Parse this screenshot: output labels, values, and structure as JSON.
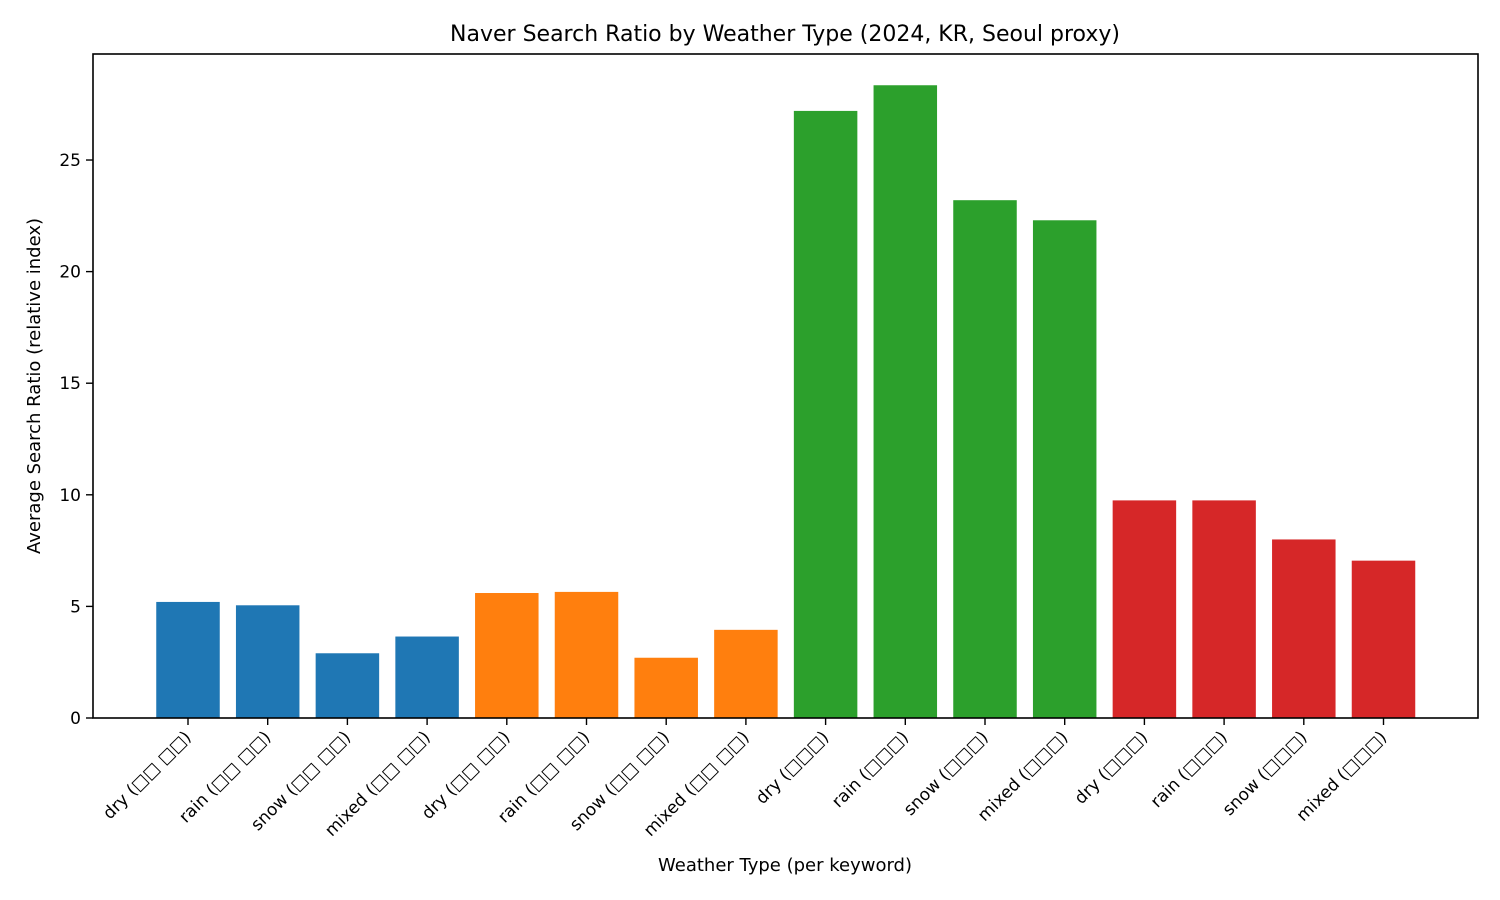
{
  "chart_data": {
    "type": "bar",
    "title": "Naver Search Ratio by Weather Type (2024, KR, Seoul proxy)",
    "xlabel": "Weather Type (per keyword)",
    "ylabel": "Average Search Ratio (relative index)",
    "categories": [
      "dry (□□ □□)",
      "rain (□□ □□)",
      "snow (□□ □□)",
      "mixed (□□ □□)",
      "dry (□□ □□)",
      "rain (□□ □□)",
      "snow (□□ □□)",
      "mixed (□□ □□)",
      "dry (□□□)",
      "rain (□□□)",
      "snow (□□□)",
      "mixed (□□□)",
      "dry (□□□)",
      "rain (□□□)",
      "snow (□□□)",
      "mixed (□□□)"
    ],
    "values": [
      5.2,
      5.05,
      2.9,
      3.65,
      5.6,
      5.65,
      2.7,
      3.95,
      27.2,
      28.35,
      23.2,
      22.3,
      9.75,
      9.75,
      8.0,
      7.05
    ],
    "colors": [
      "#1f77b4",
      "#1f77b4",
      "#1f77b4",
      "#1f77b4",
      "#ff7f0e",
      "#ff7f0e",
      "#ff7f0e",
      "#ff7f0e",
      "#2ca02c",
      "#2ca02c",
      "#2ca02c",
      "#2ca02c",
      "#d62728",
      "#d62728",
      "#d62728",
      "#d62728"
    ],
    "ylim": [
      0,
      29.75
    ],
    "yticks": [
      0,
      5,
      10,
      15,
      20,
      25
    ],
    "grid": false
  }
}
